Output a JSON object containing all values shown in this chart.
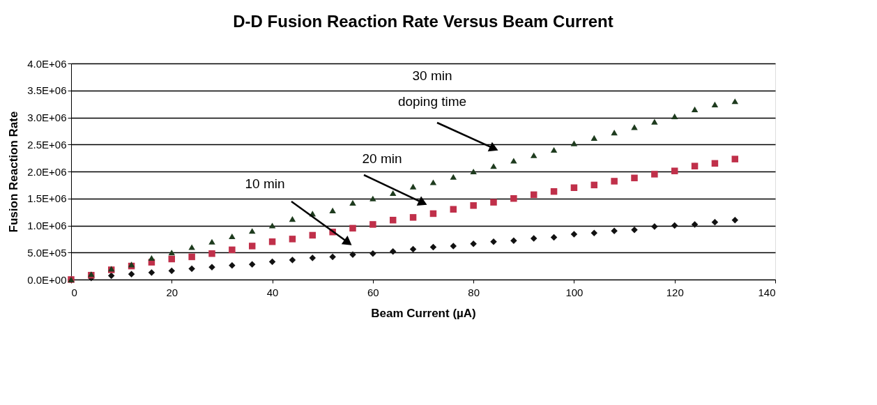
{
  "chart_data": {
    "type": "scatter",
    "title": "D-D Fusion Reaction Rate Versus Beam Current",
    "xlabel": "Beam Current (µA)",
    "ylabel": "Fusion Reaction Rate",
    "x": [
      0,
      4,
      8,
      12,
      16,
      20,
      24,
      28,
      32,
      36,
      40,
      44,
      48,
      52,
      56,
      60,
      64,
      68,
      72,
      76,
      80,
      84,
      88,
      92,
      96,
      100,
      104,
      108,
      112,
      116,
      120,
      124,
      128,
      132
    ],
    "series": [
      {
        "color": "#111111",
        "marker": "diamond",
        "values": [
          0,
          30000,
          70000,
          100000,
          130000,
          160000,
          200000,
          230000,
          260000,
          280000,
          330000,
          360000,
          400000,
          420000,
          460000,
          480000,
          520000,
          560000,
          600000,
          620000,
          660000,
          700000,
          720000,
          760000,
          780000,
          840000,
          860000,
          900000,
          920000,
          980000,
          1000000,
          1020000,
          1060000,
          1100000
        ]
      },
      {
        "color": "#c0304a",
        "marker": "square",
        "values": [
          0,
          80000,
          180000,
          250000,
          320000,
          380000,
          420000,
          480000,
          550000,
          620000,
          700000,
          750000,
          820000,
          880000,
          950000,
          1020000,
          1100000,
          1150000,
          1220000,
          1300000,
          1370000,
          1430000,
          1500000,
          1570000,
          1630000,
          1700000,
          1750000,
          1820000,
          1880000,
          1950000,
          2010000,
          2100000,
          2150000,
          2230000
        ]
      },
      {
        "color": "#1e3b1e",
        "marker": "triangle",
        "values": [
          0,
          100000,
          200000,
          280000,
          400000,
          500000,
          600000,
          700000,
          800000,
          900000,
          1000000,
          1120000,
          1220000,
          1280000,
          1420000,
          1500000,
          1600000,
          1720000,
          1800000,
          1900000,
          2000000,
          2100000,
          2200000,
          2300000,
          2400000,
          2520000,
          2620000,
          2720000,
          2820000,
          2920000,
          3020000,
          3150000,
          3240000,
          3300000
        ]
      }
    ],
    "xlim": [
      0,
      140
    ],
    "xticks": [
      0,
      20,
      40,
      60,
      80,
      100,
      120,
      140
    ],
    "ylim": [
      0,
      4000000
    ],
    "yticks": [
      {
        "value": 0,
        "label": "0.0E+00"
      },
      {
        "value": 500000,
        "label": "5.0E+05"
      },
      {
        "value": 1000000,
        "label": "1.0E+06"
      },
      {
        "value": 1500000,
        "label": "1.5E+06"
      },
      {
        "value": 2000000,
        "label": "2.0E+06"
      },
      {
        "value": 2500000,
        "label": "2.5E+06"
      },
      {
        "value": 3000000,
        "label": "3.0E+06"
      },
      {
        "value": 3500000,
        "label": "3.5E+06"
      },
      {
        "value": 4000000,
        "label": "4.0E+06"
      }
    ],
    "grid": "y",
    "annotations": [
      "10 min",
      "20 min",
      "30 min\ndoping time"
    ]
  }
}
